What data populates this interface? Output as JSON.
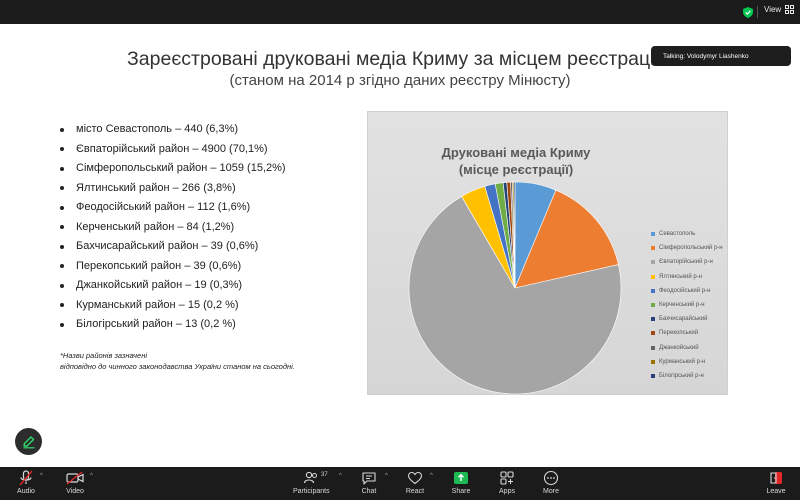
{
  "topbar": {
    "view_label": "View",
    "accent_color": "#00c853"
  },
  "slide": {
    "title": "Зареєстровані друковані медіа Криму за місцем реєстрації *",
    "subtitle": "(станом на 2014 р згідно даних реєстру Мінюсту)",
    "bullets": [
      "місто Севастополь – 440 (6,3%)",
      "Євпаторійський район – 4900 (70,1%)",
      "Сімферопольський район – 1059 (15,2%)",
      "Ялтинський район – 266 (3,8%)",
      "Феодосійський район – 112 (1,6%)",
      "Керченський район – 84 (1,2%)",
      "Бахчисарайський район – 39 (0,6%)",
      "Перекопський район – 39 (0,6%)",
      "Джанкойський район – 19 (0,3%)",
      "Курманський район – 15 (0,2 %)",
      "Білогірський район – 13 (0,2 %)"
    ],
    "footnote_line1": "*Назви районів зазначені",
    "footnote_line2": "відповідно до чинного законодавства України станом на сьогодні."
  },
  "chart_data": {
    "type": "pie",
    "title_line1": "Друковані медіа Криму",
    "title_line2": "(місце реєстрації)",
    "categories": [
      "Севастополь",
      "Сімферопольський р-н",
      "Євпаторійський р-н",
      "Ялтинський р-н",
      "Феодосійський р-н",
      "Керченський р-н",
      "Бахчисарайський",
      "Перекопський",
      "Джанкойський",
      "Курманський р-н",
      "Білогірський р-н"
    ],
    "values": [
      440,
      1059,
      4900,
      266,
      112,
      84,
      39,
      39,
      19,
      15,
      13
    ],
    "colors": [
      "#5b9bd5",
      "#ed7d31",
      "#a5a5a5",
      "#ffc000",
      "#4472c4",
      "#70ad47",
      "#264478",
      "#9e480e",
      "#636363",
      "#997300",
      "#2a3f7a"
    ],
    "legend_position": "right"
  },
  "talking": {
    "text": "Talking: Volodymyr Liashenko"
  },
  "toolbar": {
    "audio": "Audio",
    "video": "Video",
    "participants": "Participants",
    "participants_count": "37",
    "chat": "Chat",
    "react": "React",
    "share": "Share",
    "apps": "Apps",
    "more": "More",
    "leave": "Leave",
    "share_color": "#1db954",
    "leave_color": "#e02828"
  }
}
